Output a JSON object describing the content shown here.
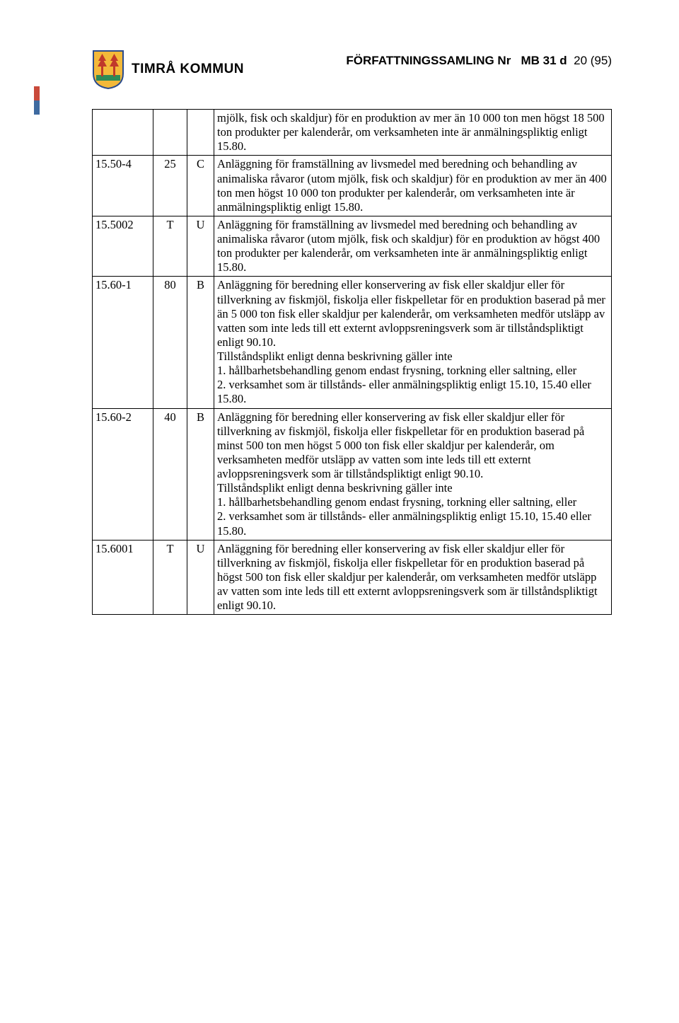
{
  "brand": "TIMRÅ KOMMUN",
  "doc_id_prefix": "FÖRFATTNINGSSAMLING Nr",
  "doc_id_code": "MB 31 d",
  "page_no": "20 (95)",
  "crest": {
    "shield_fill": "#f3b93a",
    "shield_stroke": "#2a4b8d",
    "tree_fill": "#c0392b",
    "ground_fill": "#2e8b57"
  },
  "rows": [
    {
      "c1": "",
      "c2": "",
      "c3": "",
      "c4": "mjölk, fisk och skaldjur) för en produktion av mer än 10 000 ton men högst 18 500 ton produkter per kalenderår, om verksamheten inte är anmälningspliktig enligt 15.80."
    },
    {
      "c1": "15.50-4",
      "c2": "25",
      "c3": "C",
      "c4": "Anläggning för framställning av livsmedel med beredning och behandling av animaliska råvaror (utom mjölk, fisk och skaldjur) för en produktion av mer än 400 ton men högst 10 000 ton produkter per kalenderår, om verksamheten inte är anmälningspliktig enligt 15.80."
    },
    {
      "c1": "15.5002",
      "c2": "T",
      "c3": "U",
      "c4": "Anläggning för framställning av livsmedel med beredning och behandling av animaliska råvaror (utom mjölk, fisk och skaldjur) för en produktion av högst 400 ton produkter per kalenderår, om verksamheten inte är anmälningspliktig enligt 15.80."
    },
    {
      "c1": "15.60-1",
      "c2": "80",
      "c3": "B",
      "c4": "Anläggning för beredning eller konservering av fisk eller skaldjur eller för tillverkning av fiskmjöl, fiskolja eller fiskpelletar för en produktion baserad på mer än 5 000 ton fisk eller skaldjur per kalenderår, om verksamheten medför utsläpp av vatten som inte leds till ett externt avloppsreningsverk som är tillståndspliktigt enligt 90.10.\nTillståndsplikt enligt denna beskrivning gäller inte\n1. hållbarhetsbehandling genom endast frysning, torkning eller saltning, eller\n2. verksamhet som är tillstånds- eller anmälningspliktig enligt 15.10, 15.40 eller 15.80."
    },
    {
      "c1": "15.60-2",
      "c2": "40",
      "c3": "B",
      "c4": "Anläggning för beredning eller konservering av fisk eller skaldjur eller för tillverkning av fiskmjöl, fiskolja eller fiskpelletar för en produktion baserad på minst 500 ton men högst 5 000 ton fisk eller skaldjur per kalenderår, om verksamheten medför utsläpp av vatten som inte leds till ett externt avloppsreningsverk som är tillståndspliktigt enligt 90.10.\nTillståndsplikt enligt denna beskrivning gäller inte\n1. hållbarhetsbehandling genom endast frysning, torkning eller saltning, eller\n2. verksamhet som är tillstånds- eller anmälningspliktig enligt 15.10, 15.40 eller 15.80."
    },
    {
      "c1": "15.6001",
      "c2": "T",
      "c3": "U",
      "c4": "Anläggning för beredning eller konservering av fisk eller skaldjur eller för tillverkning av fiskmjöl, fiskolja eller fiskpelletar för en produktion baserad på högst 500 ton fisk eller skaldjur per kalenderår, om verksamheten medför utsläpp av vatten som inte leds till ett externt avloppsreningsverk som är tillståndspliktigt enligt 90.10."
    }
  ]
}
